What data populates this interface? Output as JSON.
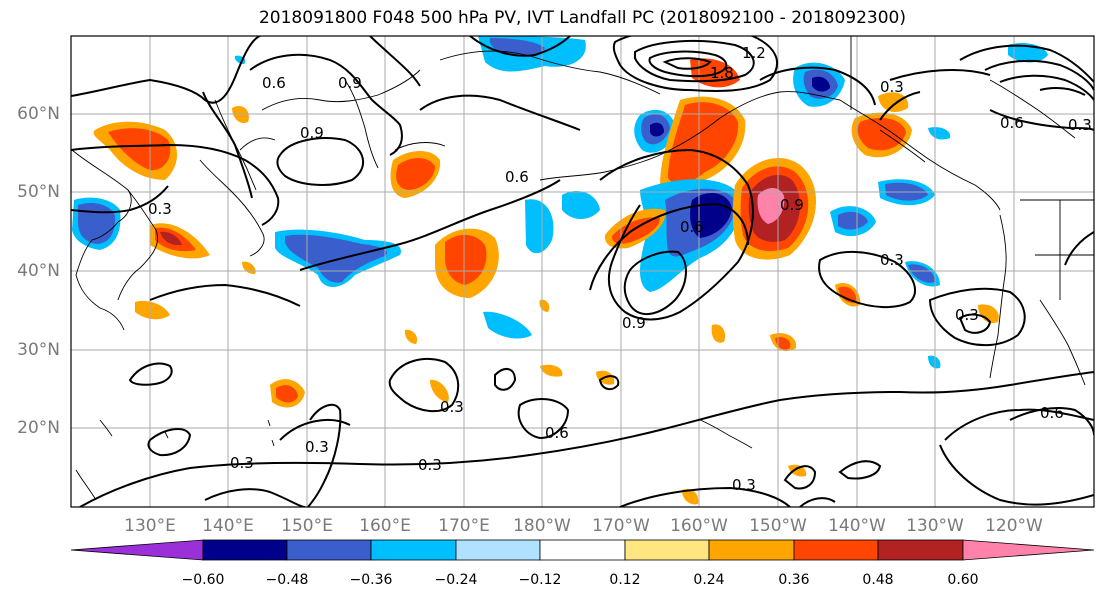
{
  "title": "2018091800 F048 500 hPa PV, IVT Landfall PC (2018092100 - 2018092300)",
  "lat_labels": [
    "60°N",
    "50°N",
    "40°N",
    "30°N",
    "20°N"
  ],
  "lon_labels": [
    "130°E",
    "140°E",
    "150°E",
    "160°E",
    "170°E",
    "180°W",
    "170°W",
    "160°W",
    "150°W",
    "140°W",
    "130°W",
    "120°W"
  ],
  "colorbar": {
    "ticks": [
      "−0.60",
      "−0.48",
      "−0.36",
      "−0.24",
      "−0.12",
      "0.12",
      "0.24",
      "0.36",
      "0.48",
      "0.60"
    ],
    "colors": [
      "#9b30d9",
      "#00008b",
      "#3a5fcd",
      "#00bfff",
      "#b0e2ff",
      "#ffffff",
      "#ffe680",
      "#ffa500",
      "#ff4500",
      "#b22222",
      "#ff82ab"
    ]
  },
  "contour_labels": [
    "0.6",
    "0.9",
    "0.9",
    "0.3",
    "0.6",
    "1.2",
    "1.8",
    "0.3",
    "0.6",
    "0.3",
    "0.6",
    "0.9",
    "0.9",
    "0.3",
    "0.3",
    "0.6",
    "0.3",
    "0.3",
    "0.6",
    "0.3",
    "0.3",
    "0.3"
  ]
}
